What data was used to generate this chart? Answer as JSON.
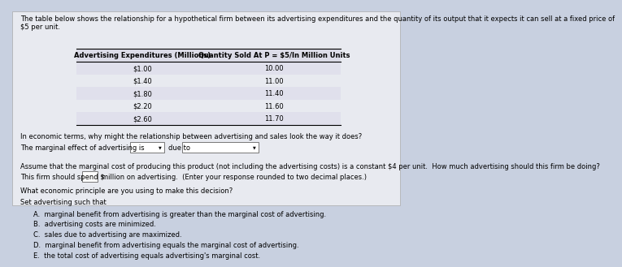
{
  "bg_color": "#c8d0e0",
  "panel_color": "#e8eaf0",
  "title_text": "The table below shows the relationship for a hypothetical firm between its advertising expenditures and the quantity of its output that it expects it can sell at a fixed price of\n$5 per unit.",
  "table_headers": [
    "Advertising Expenditures (Millions)",
    "Quantity Sold At P = $5/In Million Units"
  ],
  "table_rows": [
    [
      "$1.00",
      "10.00"
    ],
    [
      "$1.40",
      "11.00"
    ],
    [
      "$1.80",
      "11.40"
    ],
    [
      "$2.20",
      "11.60"
    ],
    [
      "$2.60",
      "11.70"
    ]
  ],
  "q1": "In economic terms, why might the relationship between advertising and sales look the way it does?",
  "q2_prefix": "The marginal effect of advertising is",
  "q2_mid": "due to",
  "q3": "Assume that the marginal cost of producing this product (not including the advertising costs) is a constant $4 per unit.  How much advertising should this firm be doing?",
  "q4_prefix": "This firm should spend $",
  "q4_suffix": "million on advertising.  (Enter your response rounded to two decimal places.)",
  "q5": "What economic principle are you using to make this decision?",
  "q6": "Set advertising such that",
  "options": [
    "A.  marginal benefit from advertising is greater than the marginal cost of advertising.",
    "B.  advertising costs are minimized.",
    "C.  sales due to advertising are maximized.",
    "D.  marginal benefit from advertising equals the marginal cost of advertising.",
    "E.  the total cost of advertising equals advertising's marginal cost."
  ]
}
